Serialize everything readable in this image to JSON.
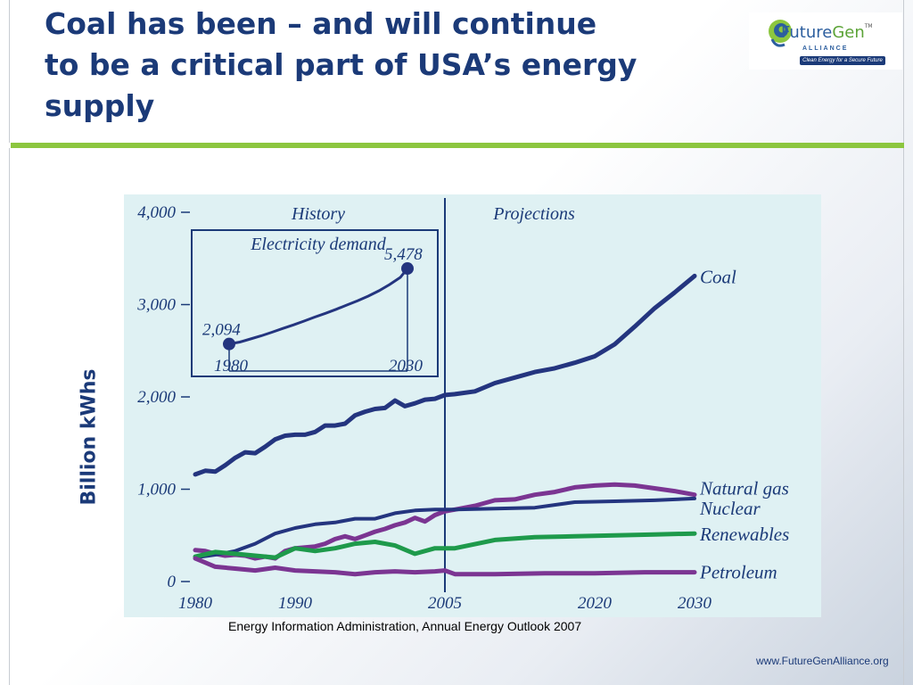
{
  "slide": {
    "title_lines": [
      "Coal has been – and will continue",
      "to be a critical part of USA’s energy",
      "supply"
    ],
    "source": "Energy Information Administration, Annual Energy Outlook 2007",
    "website": "www.FutureGenAlliance.org",
    "ylabel": "Billion kWhs"
  },
  "logo": {
    "name_part1": "Future",
    "name_part2": "Gen",
    "tm": "TM",
    "alliance": "ALLIANCE",
    "tagline": "Clean Energy for a Secure Future"
  },
  "colors": {
    "title": "#1b3a78",
    "green_rule": "#8cc63f",
    "coal": "#24357f",
    "natural_gas": "#7b3592",
    "nuclear": "#24357f",
    "renewables": "#1e9a4b",
    "petroleum": "#7b3592",
    "chart_bg": "#dff1f3",
    "axis": "#1b3a78"
  },
  "chart_data": {
    "type": "line",
    "xlim": [
      1980,
      2030
    ],
    "ylim": [
      0,
      4000
    ],
    "xticks": [
      1980,
      1990,
      2005,
      2020,
      2030
    ],
    "xtick_labels": [
      "1980",
      "1990",
      "2005",
      "2020",
      "2030"
    ],
    "yticks": [
      0,
      1000,
      2000,
      3000,
      4000
    ],
    "ytick_labels": [
      "0",
      "1,000",
      "2,000",
      "3,000",
      "4,000"
    ],
    "divider_year": 2005,
    "region_labels": {
      "history": "History",
      "projections": "Projections"
    },
    "series": [
      {
        "name": "Coal",
        "x": [
          1980,
          1981,
          1982,
          1983,
          1984,
          1985,
          1986,
          1987,
          1988,
          1989,
          1990,
          1991,
          1992,
          1993,
          1994,
          1995,
          1996,
          1997,
          1998,
          1999,
          2000,
          2001,
          2002,
          2003,
          2004,
          2005,
          2006,
          2008,
          2010,
          2012,
          2014,
          2016,
          2018,
          2020,
          2022,
          2024,
          2026,
          2028,
          2030
        ],
        "y": [
          1160,
          1200,
          1190,
          1260,
          1340,
          1400,
          1390,
          1460,
          1540,
          1580,
          1590,
          1590,
          1620,
          1690,
          1690,
          1710,
          1800,
          1840,
          1870,
          1880,
          1960,
          1900,
          1930,
          1970,
          1980,
          2020,
          2030,
          2060,
          2150,
          2210,
          2270,
          2310,
          2370,
          2440,
          2570,
          2760,
          2960,
          3130,
          3310
        ]
      },
      {
        "name": "Natural gas",
        "x": [
          1980,
          1981,
          1982,
          1983,
          1984,
          1985,
          1986,
          1987,
          1988,
          1989,
          1990,
          1991,
          1992,
          1993,
          1994,
          1995,
          1996,
          1997,
          1998,
          1999,
          2000,
          2001,
          2002,
          2003,
          2004,
          2005,
          2006,
          2008,
          2010,
          2012,
          2014,
          2016,
          2018,
          2020,
          2022,
          2024,
          2026,
          2028,
          2030
        ],
        "y": [
          340,
          330,
          300,
          280,
          290,
          280,
          250,
          270,
          250,
          330,
          360,
          370,
          380,
          410,
          460,
          490,
          460,
          500,
          540,
          570,
          610,
          640,
          690,
          650,
          720,
          760,
          780,
          820,
          880,
          890,
          940,
          970,
          1020,
          1040,
          1050,
          1040,
          1010,
          980,
          940
        ]
      },
      {
        "name": "Nuclear",
        "x": [
          1980,
          1982,
          1984,
          1986,
          1988,
          1990,
          1992,
          1994,
          1996,
          1998,
          2000,
          2002,
          2004,
          2006,
          2010,
          2014,
          2018,
          2022,
          2026,
          2030
        ],
        "y": [
          260,
          290,
          330,
          410,
          520,
          580,
          620,
          640,
          680,
          680,
          740,
          770,
          780,
          780,
          790,
          800,
          860,
          870,
          880,
          900
        ]
      },
      {
        "name": "Renewables",
        "x": [
          1980,
          1982,
          1984,
          1986,
          1988,
          1990,
          1992,
          1994,
          1996,
          1998,
          2000,
          2002,
          2004,
          2006,
          2010,
          2014,
          2018,
          2022,
          2026,
          2030
        ],
        "y": [
          270,
          320,
          300,
          280,
          260,
          360,
          330,
          360,
          410,
          430,
          390,
          300,
          360,
          360,
          450,
          480,
          490,
          500,
          510,
          520
        ]
      },
      {
        "name": "Petroleum",
        "x": [
          1980,
          1982,
          1984,
          1986,
          1988,
          1990,
          1992,
          1994,
          1996,
          1998,
          2000,
          2002,
          2004,
          2005,
          2006,
          2010,
          2015,
          2020,
          2025,
          2030
        ],
        "y": [
          250,
          160,
          140,
          120,
          150,
          120,
          110,
          100,
          80,
          100,
          110,
          100,
          110,
          120,
          80,
          80,
          90,
          90,
          100,
          100
        ]
      }
    ],
    "inset": {
      "title": "Electricity demand",
      "x": [
        1980,
        1983,
        1986,
        1989,
        1992,
        1995,
        1998,
        2001,
        2004,
        2007,
        2010,
        2013,
        2016,
        2019,
        2022,
        2025,
        2028,
        2030
      ],
      "y": [
        2094,
        2180,
        2320,
        2460,
        2620,
        2790,
        2950,
        3120,
        3300,
        3470,
        3650,
        3840,
        4030,
        4240,
        4480,
        4760,
        5080,
        5478
      ],
      "start_year": "1980",
      "end_year": "2030",
      "start_label": "2,094",
      "end_label": "5,478",
      "ylim": [
        2000,
        5600
      ]
    }
  }
}
